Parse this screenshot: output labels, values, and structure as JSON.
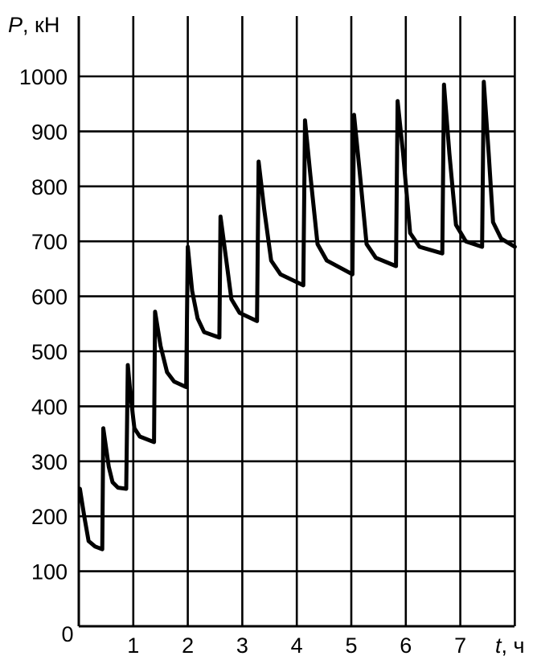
{
  "chart_data": {
    "type": "line",
    "ylabel_var": "P",
    "ylabel_unit": ", кН",
    "xlabel_var": "t",
    "xlabel_unit": ", ч",
    "x_ticks": [
      "0",
      "1",
      "2",
      "3",
      "4",
      "5",
      "6",
      "7"
    ],
    "y_ticks": [
      "100",
      "200",
      "300",
      "400",
      "500",
      "600",
      "700",
      "800",
      "900",
      "1000"
    ],
    "xlim": [
      0,
      8
    ],
    "ylim": [
      0,
      1000
    ],
    "grid": true,
    "line_color": "#000000",
    "series": [
      {
        "values": [
          [
            0.02,
            250
          ],
          [
            0.1,
            200
          ],
          [
            0.18,
            155
          ],
          [
            0.3,
            145
          ],
          [
            0.43,
            140
          ],
          [
            0.45,
            360
          ],
          [
            0.55,
            290
          ],
          [
            0.62,
            262
          ],
          [
            0.72,
            252
          ],
          [
            0.87,
            250
          ],
          [
            0.9,
            475
          ],
          [
            0.95,
            420
          ],
          [
            1.02,
            360
          ],
          [
            1.12,
            345
          ],
          [
            1.38,
            335
          ],
          [
            1.4,
            572
          ],
          [
            1.5,
            510
          ],
          [
            1.62,
            462
          ],
          [
            1.75,
            445
          ],
          [
            1.97,
            435
          ],
          [
            2.0,
            690
          ],
          [
            2.08,
            610
          ],
          [
            2.18,
            560
          ],
          [
            2.3,
            535
          ],
          [
            2.58,
            525
          ],
          [
            2.6,
            745
          ],
          [
            2.7,
            670
          ],
          [
            2.8,
            595
          ],
          [
            2.95,
            570
          ],
          [
            3.27,
            555
          ],
          [
            3.3,
            845
          ],
          [
            3.4,
            760
          ],
          [
            3.53,
            665
          ],
          [
            3.7,
            640
          ],
          [
            4.12,
            620
          ],
          [
            4.15,
            920
          ],
          [
            4.25,
            820
          ],
          [
            4.38,
            695
          ],
          [
            4.55,
            665
          ],
          [
            5.02,
            640
          ],
          [
            5.05,
            930
          ],
          [
            5.15,
            830
          ],
          [
            5.28,
            695
          ],
          [
            5.45,
            670
          ],
          [
            5.82,
            655
          ],
          [
            5.85,
            955
          ],
          [
            5.95,
            860
          ],
          [
            6.08,
            715
          ],
          [
            6.25,
            690
          ],
          [
            6.67,
            678
          ],
          [
            6.7,
            985
          ],
          [
            6.8,
            860
          ],
          [
            6.92,
            730
          ],
          [
            7.1,
            700
          ],
          [
            7.4,
            690
          ],
          [
            7.43,
            990
          ],
          [
            7.52,
            860
          ],
          [
            7.6,
            735
          ],
          [
            7.75,
            705
          ],
          [
            8.0,
            690
          ]
        ]
      }
    ]
  }
}
